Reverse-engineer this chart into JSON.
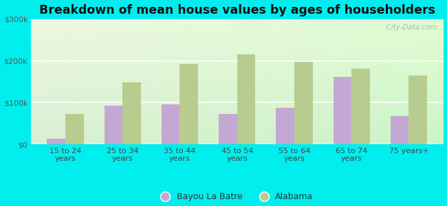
{
  "title": "Breakdown of mean house values by ages of householders",
  "categories": [
    "15 to 24\nyears",
    "25 to 34\nyears",
    "35 to 44\nyears",
    "45 to 54\nyears",
    "55 to 64\nyears",
    "65 to 74\nyears",
    "75 years+"
  ],
  "bayou_values": [
    13000,
    93000,
    95000,
    73000,
    88000,
    162000,
    68000
  ],
  "alabama_values": [
    73000,
    148000,
    192000,
    215000,
    197000,
    182000,
    165000
  ],
  "bayou_color": "#c4a8d4",
  "alabama_color": "#b8cc90",
  "background_color": "#00eeee",
  "ylim": [
    0,
    300000
  ],
  "yticks": [
    0,
    100000,
    200000,
    300000
  ],
  "ytick_labels": [
    "$0",
    "$100k",
    "$200k",
    "$300k"
  ],
  "bar_width": 0.32,
  "legend_labels": [
    "Bayou La Batre",
    "Alabama"
  ],
  "watermark": "  City-Data.com",
  "title_fontsize": 12.5,
  "tick_fontsize": 8,
  "legend_fontsize": 9
}
